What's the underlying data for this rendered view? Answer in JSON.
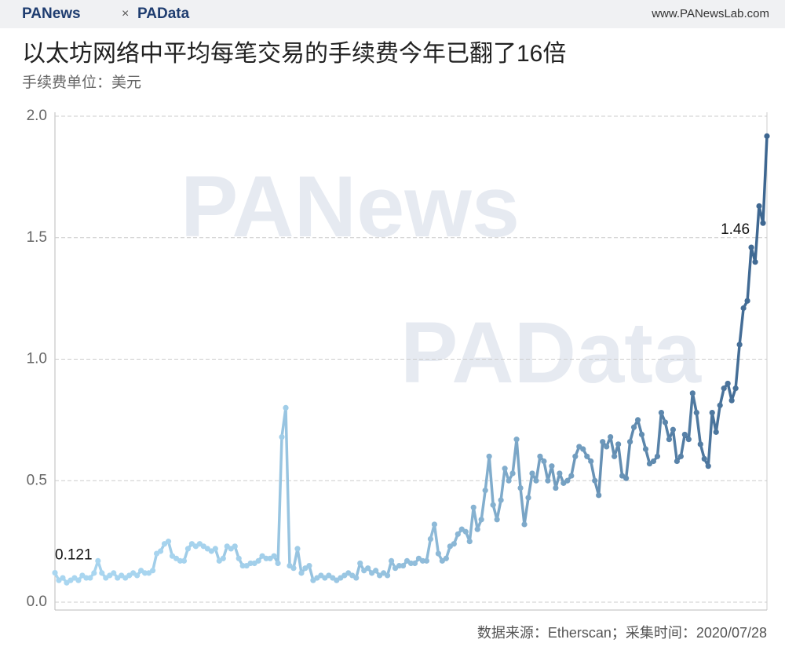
{
  "header": {
    "brand_left": "PANews",
    "times": "×",
    "brand_right": "PAData",
    "site": "www.PANewsLab.com"
  },
  "watermark": [
    "PANews",
    "PAData"
  ],
  "footer": "数据来源：Etherscan；采集时间：2020/07/28",
  "chart_data": {
    "type": "line",
    "title": "以太坊网络中平均每笔交易的手续费今年已翻了16倍",
    "subtitle": "手续费单位：美元",
    "colors": [
      "#a9d6f0",
      "#3d6690"
    ],
    "values": [
      0.121,
      0.09,
      0.1,
      0.08,
      0.09,
      0.1,
      0.09,
      0.11,
      0.1,
      0.1,
      0.12,
      0.17,
      0.12,
      0.1,
      0.11,
      0.12,
      0.1,
      0.11,
      0.1,
      0.11,
      0.12,
      0.11,
      0.13,
      0.12,
      0.12,
      0.13,
      0.2,
      0.21,
      0.24,
      0.25,
      0.19,
      0.18,
      0.17,
      0.17,
      0.22,
      0.24,
      0.23,
      0.24,
      0.23,
      0.22,
      0.21,
      0.22,
      0.17,
      0.18,
      0.23,
      0.22,
      0.23,
      0.18,
      0.15,
      0.15,
      0.16,
      0.16,
      0.17,
      0.19,
      0.18,
      0.18,
      0.19,
      0.16,
      0.68,
      0.8,
      0.15,
      0.14,
      0.22,
      0.12,
      0.14,
      0.15,
      0.09,
      0.1,
      0.11,
      0.1,
      0.11,
      0.1,
      0.09,
      0.1,
      0.11,
      0.12,
      0.11,
      0.1,
      0.16,
      0.13,
      0.14,
      0.12,
      0.13,
      0.11,
      0.12,
      0.11,
      0.17,
      0.14,
      0.15,
      0.15,
      0.17,
      0.16,
      0.16,
      0.18,
      0.17,
      0.17,
      0.26,
      0.32,
      0.2,
      0.17,
      0.18,
      0.23,
      0.24,
      0.28,
      0.3,
      0.29,
      0.25,
      0.39,
      0.3,
      0.34,
      0.46,
      0.6,
      0.4,
      0.34,
      0.42,
      0.55,
      0.5,
      0.53,
      0.67,
      0.47,
      0.32,
      0.43,
      0.53,
      0.5,
      0.6,
      0.58,
      0.5,
      0.56,
      0.47,
      0.53,
      0.49,
      0.5,
      0.52,
      0.6,
      0.64,
      0.63,
      0.6,
      0.58,
      0.5,
      0.44,
      0.66,
      0.64,
      0.68,
      0.6,
      0.65,
      0.52,
      0.51,
      0.66,
      0.72,
      0.75,
      0.69,
      0.63,
      0.57,
      0.58,
      0.6,
      0.78,
      0.74,
      0.67,
      0.71,
      0.58,
      0.6,
      0.69,
      0.67,
      0.86,
      0.78,
      0.65,
      0.59,
      0.56,
      0.78,
      0.7,
      0.81,
      0.88,
      0.9,
      0.83,
      0.88,
      1.06,
      1.21,
      1.24,
      1.46,
      1.4,
      1.63,
      1.56,
      1.918
    ],
    "label_points": [
      0,
      178
    ],
    "ylim": [
      0,
      2
    ],
    "yticks": [
      {
        "value": 0,
        "label": "0.0"
      },
      {
        "value": 0.5,
        "label": "0.5"
      },
      {
        "value": 1,
        "label": "1.0"
      },
      {
        "value": 1.5,
        "label": "1.5"
      },
      {
        "value": 2,
        "label": "2.0"
      }
    ],
    "grid": true
  }
}
